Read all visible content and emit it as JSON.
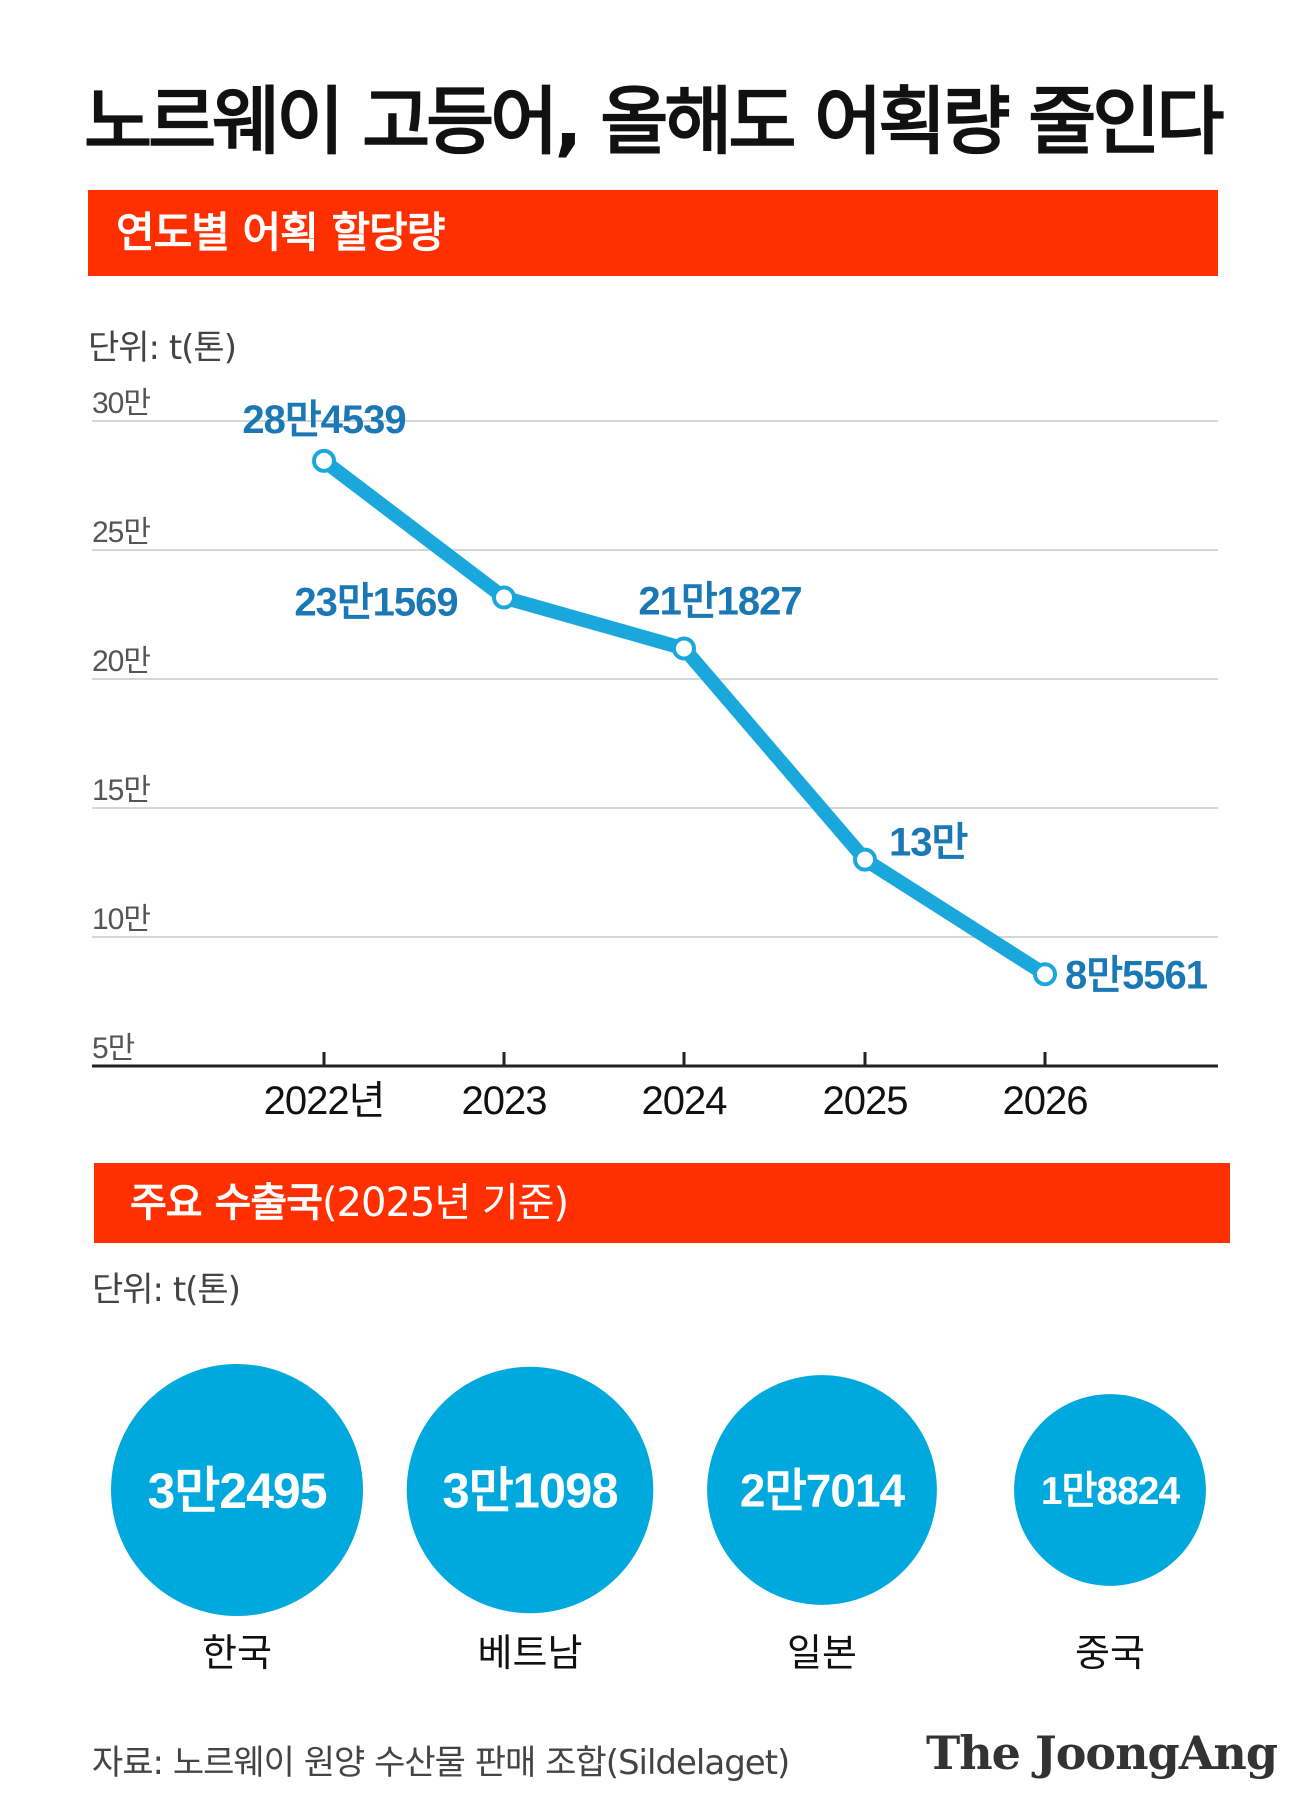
{
  "title": "노르웨이 고등어, 올해도 어획량 줄인다",
  "section1": {
    "banner": "연도별 어획 할당량",
    "unit": "단위: t(톤)"
  },
  "section2": {
    "banner_main": "주요 수출국",
    "banner_sub": "(2025년 기준)",
    "unit": "단위: t(톤)"
  },
  "chart_data": [
    {
      "type": "line",
      "x": [
        "2022년",
        "2023",
        "2024",
        "2025",
        "2026"
      ],
      "series": [
        {
          "values": [
            284539,
            231569,
            211827,
            130000,
            85561
          ],
          "data_labels": [
            "28만4539",
            "23만1569",
            "21만1827",
            "13만",
            "8만5561"
          ]
        }
      ],
      "y_ticks": [
        50000,
        100000,
        150000,
        200000,
        250000,
        300000
      ],
      "y_tick_labels": [
        "5만",
        "10만",
        "15만",
        "20만",
        "25만",
        "30만"
      ],
      "ylim": [
        50000,
        300000
      ],
      "grid": true,
      "colors": {
        "line": "#1aa8dc",
        "label": "#1a78b4",
        "grid": "#d6d6d6"
      }
    },
    {
      "type": "bubble",
      "categories": [
        "한국",
        "베트남",
        "일본",
        "중국"
      ],
      "values": [
        32495,
        31098,
        27014,
        18824
      ],
      "data_labels": [
        "3만2495",
        "3만1098",
        "2만7014",
        "1만8824"
      ],
      "colors": {
        "bubble": "#00a9dd",
        "label": "#ffffff"
      }
    }
  ],
  "footer": {
    "source": "자료: 노르웨이 원양 수산물 판매 조합(Sildelaget)",
    "brand": "The JoongAng"
  }
}
